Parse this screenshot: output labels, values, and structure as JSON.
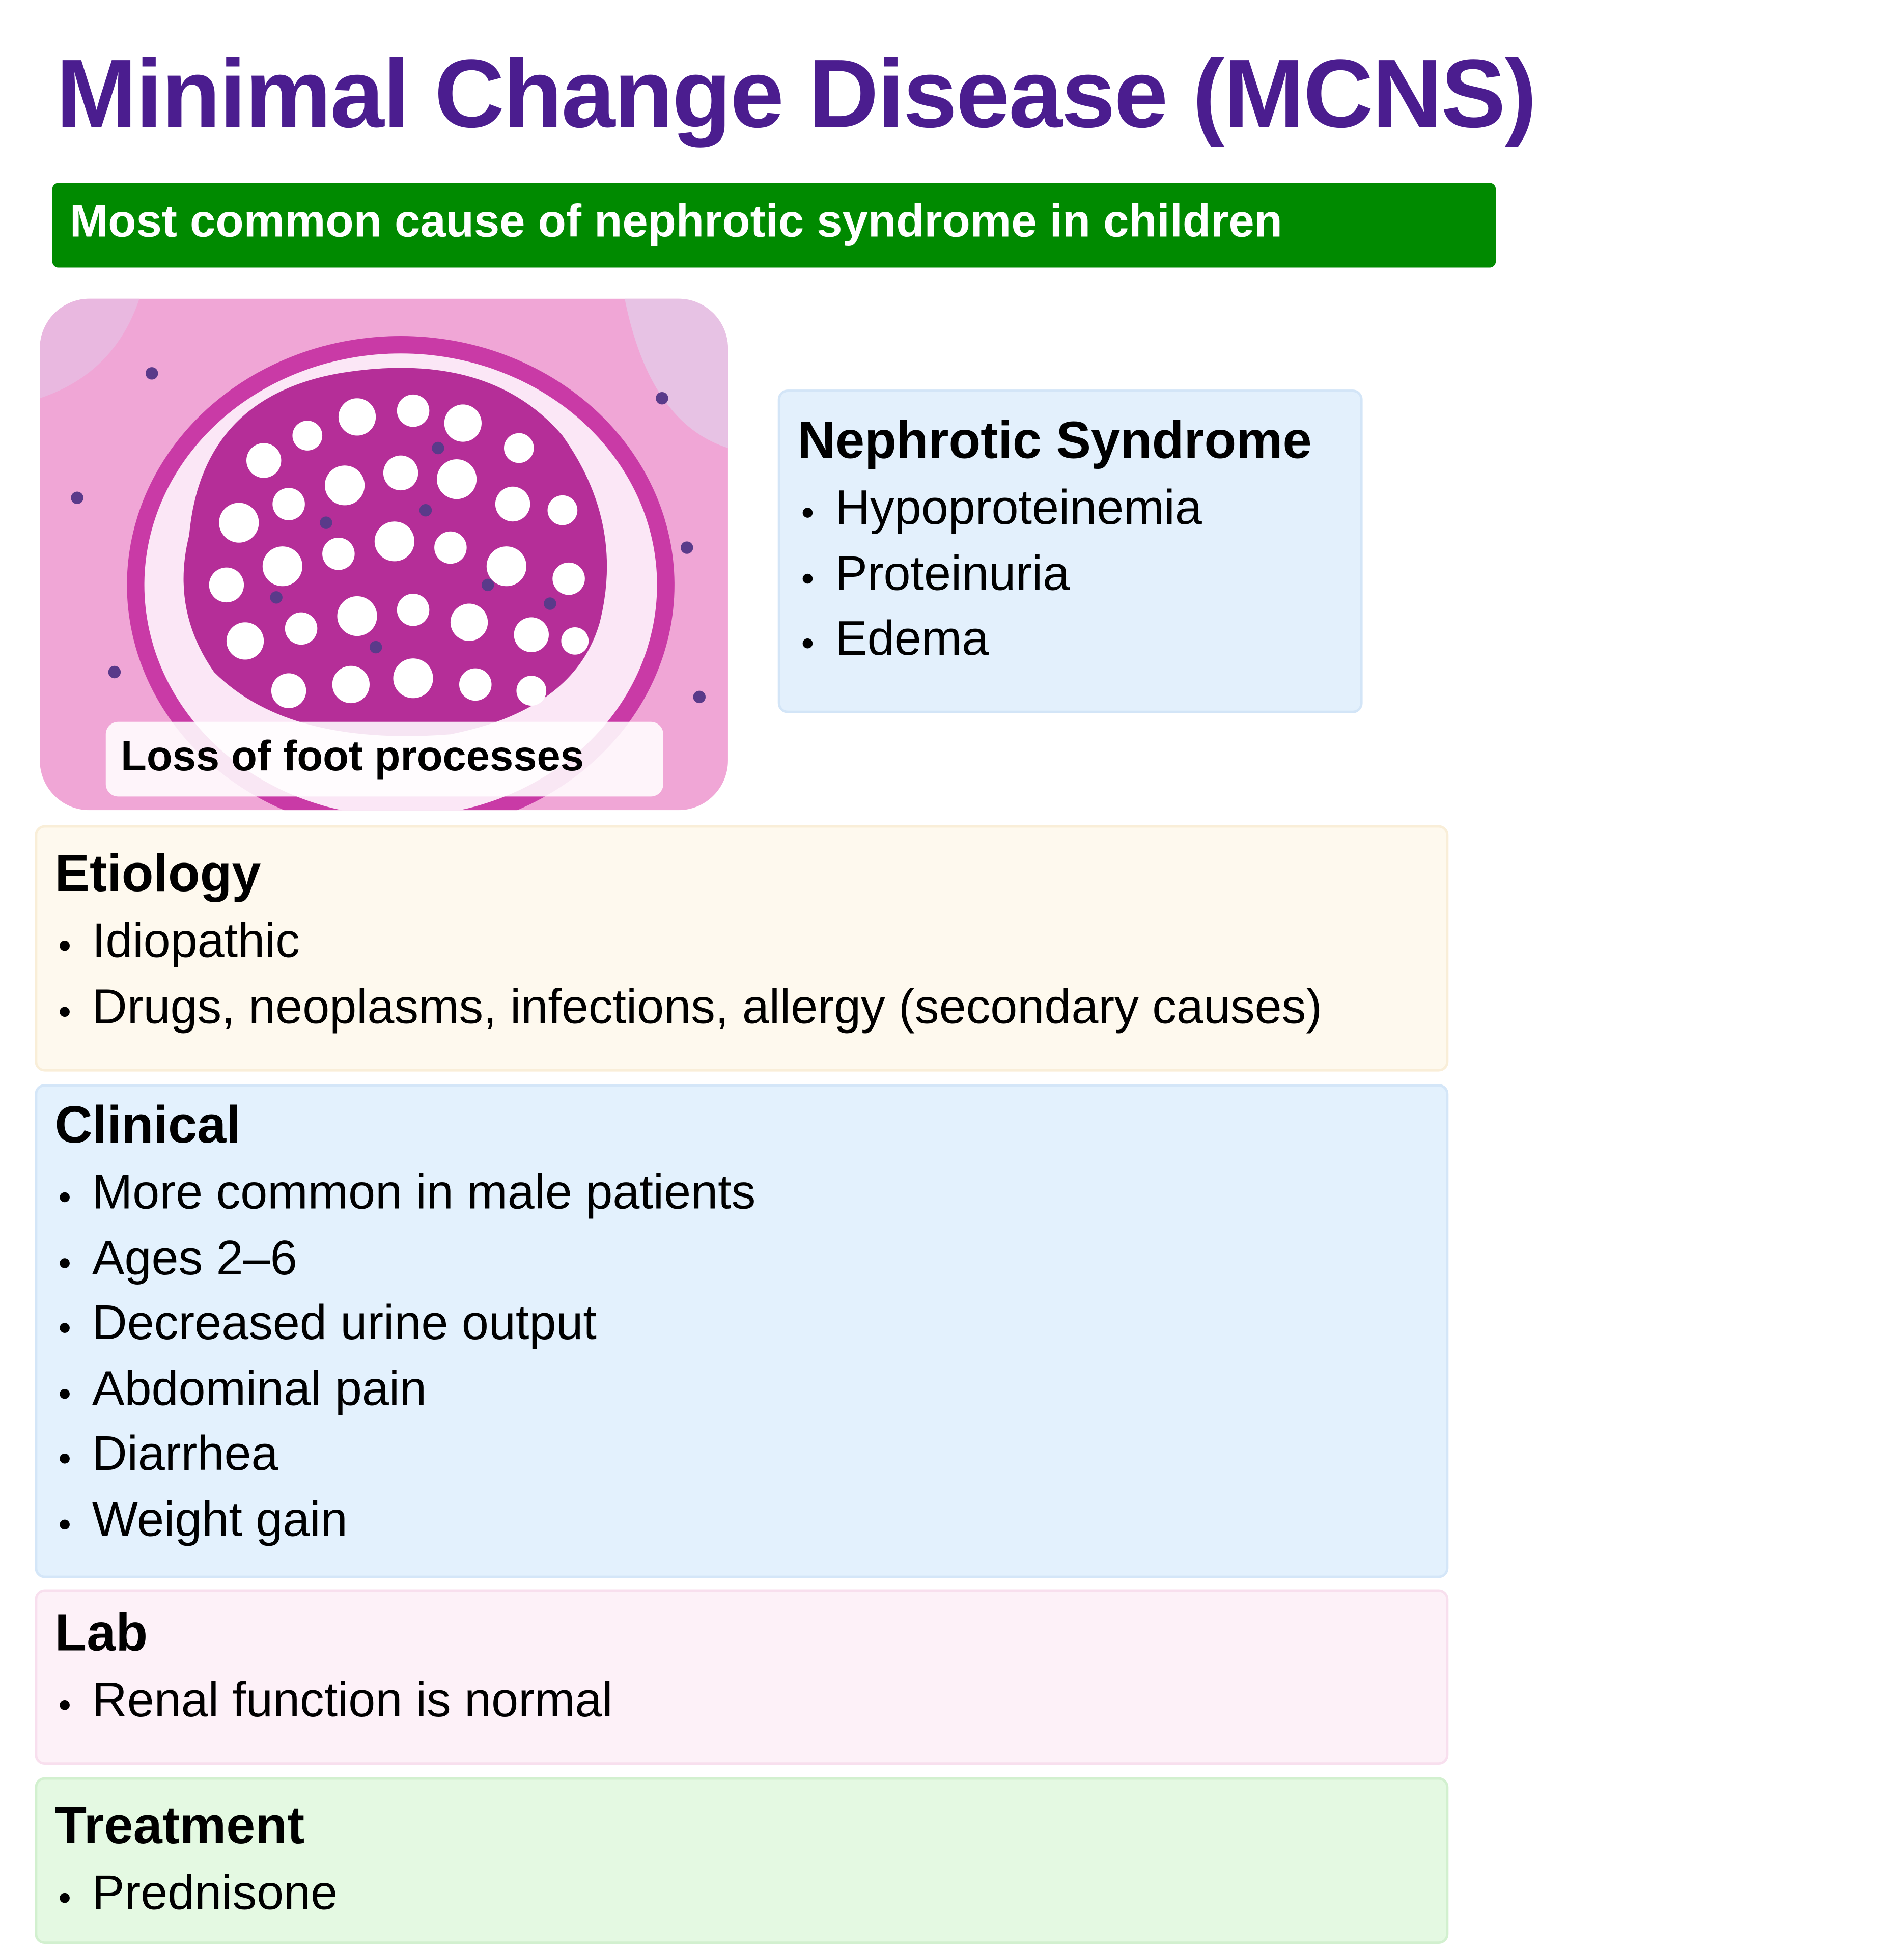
{
  "header": {
    "title": "Minimal Change Disease (MCNS)",
    "subtitle": "Most common cause of nephrotic syndrome in children"
  },
  "image": {
    "caption": "Loss of foot processes"
  },
  "sections": [
    {
      "title": "Nephrotic Syndrome",
      "items": [
        "Hypoproteinemia",
        "Proteinuria",
        "Edema"
      ]
    },
    {
      "title": "Etiology",
      "items": [
        "Idiopathic",
        "Drugs, neoplasms, infections, allergy (secondary causes)"
      ]
    },
    {
      "title": "Clinical",
      "items": [
        "More common in male patients",
        "Ages 2–6",
        "Decreased urine output",
        "Abdominal pain",
        "Diarrhea",
        "Weight gain"
      ]
    },
    {
      "title": "Lab",
      "items": [
        "Renal function is normal"
      ]
    },
    {
      "title": "Treatment",
      "items": [
        "Prednisone"
      ]
    }
  ]
}
